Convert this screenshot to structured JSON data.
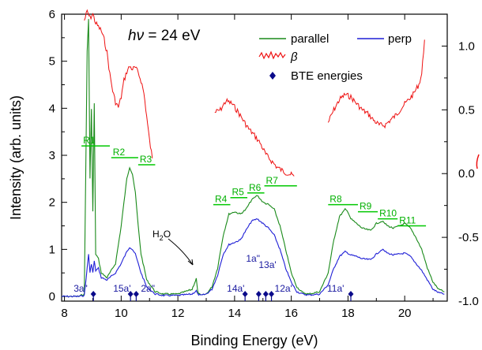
{
  "chart_data": {
    "type": "line",
    "title": "",
    "xlabel": "Binding Energy (eV)",
    "ylabel": "Intensity (arb. units)",
    "y2label": "",
    "xlim": [
      7.9,
      21.5
    ],
    "ylim": [
      -0.1,
      6.0
    ],
    "y2lim": [
      -1.0,
      1.25
    ],
    "xticks": [
      8,
      10,
      12,
      14,
      16,
      18,
      20
    ],
    "yticks": [
      0,
      1,
      2,
      3,
      4,
      5,
      6
    ],
    "y2ticks": [
      -1.0,
      -0.5,
      0.0,
      0.5,
      1.0
    ],
    "y2ticklabels": [
      "-1.0",
      "-0.5",
      "0.0",
      "0.5",
      "1.0"
    ],
    "grid": false,
    "legend_position": "top-right",
    "annotation_photon": {
      "symbol": "hν",
      "text": " = 24 eV"
    },
    "annotation_water": {
      "main": "H",
      "sub": "2",
      "tail": "O",
      "x": 12.6,
      "y": 0.3
    },
    "colors": {
      "parallel": "#1a8a1a",
      "perp": "#1f1fd6",
      "beta": "#ee1111",
      "bte": "#0a0a8a",
      "region": "#00c800"
    },
    "series": [
      {
        "name": "parallel",
        "axis": "left",
        "x": [
          7.9,
          8.5,
          8.7,
          8.8,
          8.85,
          8.9,
          8.95,
          9.0,
          9.05,
          9.1,
          9.2,
          9.3,
          9.5,
          9.8,
          10.0,
          10.2,
          10.3,
          10.4,
          10.5,
          10.6,
          10.7,
          10.9,
          11.2,
          11.5,
          12.0,
          12.5,
          12.65,
          12.7,
          12.8,
          13.0,
          13.2,
          13.4,
          13.6,
          13.8,
          14.0,
          14.2,
          14.4,
          14.6,
          14.8,
          15.0,
          15.2,
          15.4,
          15.6,
          15.8,
          16.0,
          16.2,
          16.4,
          16.6,
          17.0,
          17.3,
          17.5,
          17.7,
          17.9,
          18.0,
          18.1,
          18.3,
          18.5,
          18.8,
          19.0,
          19.2,
          19.4,
          19.6,
          19.8,
          20.0,
          20.2,
          20.4,
          20.6,
          20.8,
          21.0,
          21.2,
          21.4
        ],
        "values": [
          0.0,
          0.0,
          0.05,
          5.2,
          5.9,
          2.5,
          4.0,
          1.8,
          4.1,
          0.9,
          0.8,
          0.5,
          0.4,
          0.7,
          1.5,
          2.5,
          2.75,
          2.6,
          2.2,
          1.5,
          0.9,
          0.35,
          0.1,
          0.05,
          0.05,
          0.15,
          0.38,
          0.1,
          0.02,
          0.05,
          0.2,
          0.6,
          1.3,
          1.75,
          1.8,
          1.75,
          1.85,
          2.05,
          2.15,
          2.0,
          1.95,
          1.85,
          1.5,
          1.0,
          0.5,
          0.2,
          0.08,
          0.05,
          0.1,
          0.5,
          1.2,
          1.7,
          1.85,
          1.8,
          1.65,
          1.55,
          1.45,
          1.4,
          1.55,
          1.6,
          1.5,
          1.45,
          1.5,
          1.55,
          1.45,
          1.25,
          1.0,
          0.6,
          0.3,
          0.15,
          0.1
        ]
      },
      {
        "name": "perp",
        "axis": "left",
        "x": [
          7.9,
          8.5,
          8.7,
          8.8,
          8.85,
          8.9,
          8.95,
          9.0,
          9.05,
          9.1,
          9.2,
          9.3,
          9.5,
          9.8,
          10.0,
          10.2,
          10.3,
          10.4,
          10.5,
          10.6,
          10.7,
          10.9,
          11.2,
          11.5,
          12.0,
          12.5,
          12.65,
          12.7,
          12.8,
          13.0,
          13.2,
          13.4,
          13.6,
          13.8,
          14.0,
          14.2,
          14.4,
          14.6,
          14.8,
          15.0,
          15.2,
          15.4,
          15.6,
          15.8,
          16.0,
          16.2,
          16.4,
          16.6,
          17.0,
          17.3,
          17.5,
          17.7,
          17.9,
          18.0,
          18.1,
          18.3,
          18.5,
          18.8,
          19.0,
          19.2,
          19.4,
          19.6,
          19.8,
          20.0,
          20.2,
          20.4,
          20.6,
          20.8,
          21.0,
          21.2,
          21.4
        ],
        "values": [
          0.0,
          0.0,
          0.02,
          0.6,
          0.9,
          0.5,
          0.7,
          0.5,
          0.75,
          0.55,
          0.6,
          0.4,
          0.35,
          0.5,
          0.7,
          0.95,
          1.05,
          1.0,
          0.9,
          0.7,
          0.5,
          0.2,
          0.05,
          0.02,
          0.02,
          0.05,
          0.12,
          0.05,
          0.02,
          0.05,
          0.15,
          0.45,
          0.9,
          1.1,
          1.15,
          1.2,
          1.4,
          1.6,
          1.65,
          1.55,
          1.45,
          1.3,
          1.0,
          0.6,
          0.3,
          0.1,
          0.05,
          0.03,
          0.05,
          0.25,
          0.6,
          0.85,
          0.95,
          0.92,
          0.88,
          0.85,
          0.8,
          0.78,
          0.9,
          1.0,
          0.92,
          0.88,
          0.9,
          0.92,
          0.85,
          0.7,
          0.55,
          0.35,
          0.15,
          0.08,
          0.05
        ]
      },
      {
        "name": "β",
        "axis": "right",
        "segments": [
          {
            "x": [
              8.7,
              8.8,
              8.9,
              9.0,
              9.1,
              9.2,
              9.3,
              9.4,
              9.5,
              9.6,
              9.7,
              9.8,
              9.9,
              10.0,
              10.1,
              10.2,
              10.3,
              10.4,
              10.5,
              10.6,
              10.7,
              10.8,
              10.9,
              11.0,
              11.1
            ],
            "values": [
              1.2,
              1.27,
              1.22,
              1.25,
              1.18,
              1.15,
              1.12,
              1.05,
              0.95,
              0.78,
              0.65,
              0.56,
              0.52,
              0.6,
              0.73,
              0.8,
              0.84,
              0.82,
              0.83,
              0.79,
              0.73,
              0.63,
              0.45,
              0.26,
              0.12
            ]
          },
          {
            "x": [
              13.3,
              13.5,
              13.7,
              13.9,
              14.1,
              14.3,
              14.5,
              14.7,
              14.9,
              15.1,
              15.3,
              15.5,
              15.7,
              15.9,
              16.1
            ],
            "values": [
              0.48,
              0.5,
              0.57,
              0.55,
              0.49,
              0.42,
              0.35,
              0.3,
              0.24,
              0.15,
              0.1,
              0.05,
              0.02,
              0.0,
              -0.02
            ]
          },
          {
            "x": [
              17.3,
              17.5,
              17.7,
              17.9,
              18.1,
              18.3,
              18.5,
              18.7,
              18.9,
              19.1,
              19.3,
              19.5,
              19.7,
              19.9,
              20.1,
              20.3,
              20.5,
              20.6,
              20.7
            ],
            "values": [
              0.4,
              0.5,
              0.58,
              0.62,
              0.6,
              0.55,
              0.5,
              0.47,
              0.42,
              0.38,
              0.38,
              0.42,
              0.46,
              0.52,
              0.57,
              0.62,
              0.7,
              0.78,
              1.05
            ]
          }
        ]
      }
    ],
    "bte_energies": {
      "name": "BTE energies",
      "points": [
        {
          "label": "3a\"",
          "x": 9.02
        },
        {
          "label": "15a'",
          "x": 10.33
        },
        {
          "label": "2a\"",
          "x": 10.53
        },
        {
          "label": "14a'",
          "x": 14.37
        },
        {
          "label": "1a\"",
          "x": 14.85
        },
        {
          "label": "13a'",
          "x": 15.1
        },
        {
          "label": "12a'",
          "x": 15.3
        },
        {
          "label": "11a'",
          "x": 18.1
        }
      ]
    },
    "regions": [
      {
        "label": "R1",
        "x1": 8.6,
        "x2": 9.6,
        "y": 3.2
      },
      {
        "label": "R2",
        "x1": 9.65,
        "x2": 10.6,
        "y": 2.95
      },
      {
        "label": "R3",
        "x1": 10.6,
        "x2": 11.2,
        "y": 2.8
      },
      {
        "label": "R4",
        "x1": 13.25,
        "x2": 13.85,
        "y": 1.95
      },
      {
        "label": "R5",
        "x1": 13.85,
        "x2": 14.45,
        "y": 2.1
      },
      {
        "label": "R6",
        "x1": 14.45,
        "x2": 15.05,
        "y": 2.2
      },
      {
        "label": "R7",
        "x1": 15.05,
        "x2": 16.2,
        "y": 2.35
      },
      {
        "label": "R8",
        "x1": 17.3,
        "x2": 18.35,
        "y": 1.95
      },
      {
        "label": "R9",
        "x1": 18.35,
        "x2": 19.05,
        "y": 1.8
      },
      {
        "label": "R10",
        "x1": 19.05,
        "x2": 19.75,
        "y": 1.65
      },
      {
        "label": "R11",
        "x1": 19.75,
        "x2": 20.75,
        "y": 1.5
      }
    ]
  }
}
